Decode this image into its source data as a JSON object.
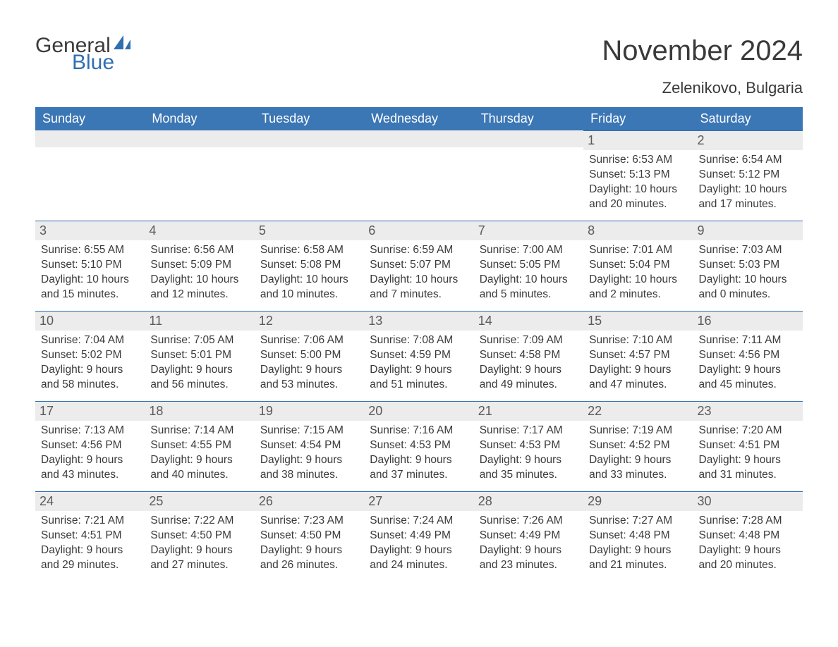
{
  "brand": {
    "word1": "General",
    "word2": "Blue",
    "accent": "#2f6fb0"
  },
  "title": "November 2024",
  "location": "Zelenikovo, Bulgaria",
  "colors": {
    "header_bg": "#3b76b5",
    "header_text": "#ffffff",
    "band_bg": "#ececec",
    "band_border": "#2f6fb0",
    "text": "#3a3a3a",
    "daynum": "#5a5a5a",
    "page_bg": "#ffffff"
  },
  "typography": {
    "title_fontsize": 40,
    "subtitle_fontsize": 22,
    "dow_fontsize": 18,
    "daynum_fontsize": 18,
    "body_fontsize": 15.5
  },
  "days_of_week": [
    "Sunday",
    "Monday",
    "Tuesday",
    "Wednesday",
    "Thursday",
    "Friday",
    "Saturday"
  ],
  "labels": {
    "sunrise": "Sunrise:",
    "sunset": "Sunset:",
    "daylight": "Daylight:"
  },
  "weeks": [
    [
      {
        "blank": true
      },
      {
        "blank": true
      },
      {
        "blank": true
      },
      {
        "blank": true
      },
      {
        "blank": true
      },
      {
        "n": "1",
        "sunrise": "6:53 AM",
        "sunset": "5:13 PM",
        "daylight": "10 hours and 20 minutes."
      },
      {
        "n": "2",
        "sunrise": "6:54 AM",
        "sunset": "5:12 PM",
        "daylight": "10 hours and 17 minutes."
      }
    ],
    [
      {
        "n": "3",
        "sunrise": "6:55 AM",
        "sunset": "5:10 PM",
        "daylight": "10 hours and 15 minutes."
      },
      {
        "n": "4",
        "sunrise": "6:56 AM",
        "sunset": "5:09 PM",
        "daylight": "10 hours and 12 minutes."
      },
      {
        "n": "5",
        "sunrise": "6:58 AM",
        "sunset": "5:08 PM",
        "daylight": "10 hours and 10 minutes."
      },
      {
        "n": "6",
        "sunrise": "6:59 AM",
        "sunset": "5:07 PM",
        "daylight": "10 hours and 7 minutes."
      },
      {
        "n": "7",
        "sunrise": "7:00 AM",
        "sunset": "5:05 PM",
        "daylight": "10 hours and 5 minutes."
      },
      {
        "n": "8",
        "sunrise": "7:01 AM",
        "sunset": "5:04 PM",
        "daylight": "10 hours and 2 minutes."
      },
      {
        "n": "9",
        "sunrise": "7:03 AM",
        "sunset": "5:03 PM",
        "daylight": "10 hours and 0 minutes."
      }
    ],
    [
      {
        "n": "10",
        "sunrise": "7:04 AM",
        "sunset": "5:02 PM",
        "daylight": "9 hours and 58 minutes."
      },
      {
        "n": "11",
        "sunrise": "7:05 AM",
        "sunset": "5:01 PM",
        "daylight": "9 hours and 56 minutes."
      },
      {
        "n": "12",
        "sunrise": "7:06 AM",
        "sunset": "5:00 PM",
        "daylight": "9 hours and 53 minutes."
      },
      {
        "n": "13",
        "sunrise": "7:08 AM",
        "sunset": "4:59 PM",
        "daylight": "9 hours and 51 minutes."
      },
      {
        "n": "14",
        "sunrise": "7:09 AM",
        "sunset": "4:58 PM",
        "daylight": "9 hours and 49 minutes."
      },
      {
        "n": "15",
        "sunrise": "7:10 AM",
        "sunset": "4:57 PM",
        "daylight": "9 hours and 47 minutes."
      },
      {
        "n": "16",
        "sunrise": "7:11 AM",
        "sunset": "4:56 PM",
        "daylight": "9 hours and 45 minutes."
      }
    ],
    [
      {
        "n": "17",
        "sunrise": "7:13 AM",
        "sunset": "4:56 PM",
        "daylight": "9 hours and 43 minutes."
      },
      {
        "n": "18",
        "sunrise": "7:14 AM",
        "sunset": "4:55 PM",
        "daylight": "9 hours and 40 minutes."
      },
      {
        "n": "19",
        "sunrise": "7:15 AM",
        "sunset": "4:54 PM",
        "daylight": "9 hours and 38 minutes."
      },
      {
        "n": "20",
        "sunrise": "7:16 AM",
        "sunset": "4:53 PM",
        "daylight": "9 hours and 37 minutes."
      },
      {
        "n": "21",
        "sunrise": "7:17 AM",
        "sunset": "4:53 PM",
        "daylight": "9 hours and 35 minutes."
      },
      {
        "n": "22",
        "sunrise": "7:19 AM",
        "sunset": "4:52 PM",
        "daylight": "9 hours and 33 minutes."
      },
      {
        "n": "23",
        "sunrise": "7:20 AM",
        "sunset": "4:51 PM",
        "daylight": "9 hours and 31 minutes."
      }
    ],
    [
      {
        "n": "24",
        "sunrise": "7:21 AM",
        "sunset": "4:51 PM",
        "daylight": "9 hours and 29 minutes."
      },
      {
        "n": "25",
        "sunrise": "7:22 AM",
        "sunset": "4:50 PM",
        "daylight": "9 hours and 27 minutes."
      },
      {
        "n": "26",
        "sunrise": "7:23 AM",
        "sunset": "4:50 PM",
        "daylight": "9 hours and 26 minutes."
      },
      {
        "n": "27",
        "sunrise": "7:24 AM",
        "sunset": "4:49 PM",
        "daylight": "9 hours and 24 minutes."
      },
      {
        "n": "28",
        "sunrise": "7:26 AM",
        "sunset": "4:49 PM",
        "daylight": "9 hours and 23 minutes."
      },
      {
        "n": "29",
        "sunrise": "7:27 AM",
        "sunset": "4:48 PM",
        "daylight": "9 hours and 21 minutes."
      },
      {
        "n": "30",
        "sunrise": "7:28 AM",
        "sunset": "4:48 PM",
        "daylight": "9 hours and 20 minutes."
      }
    ]
  ]
}
